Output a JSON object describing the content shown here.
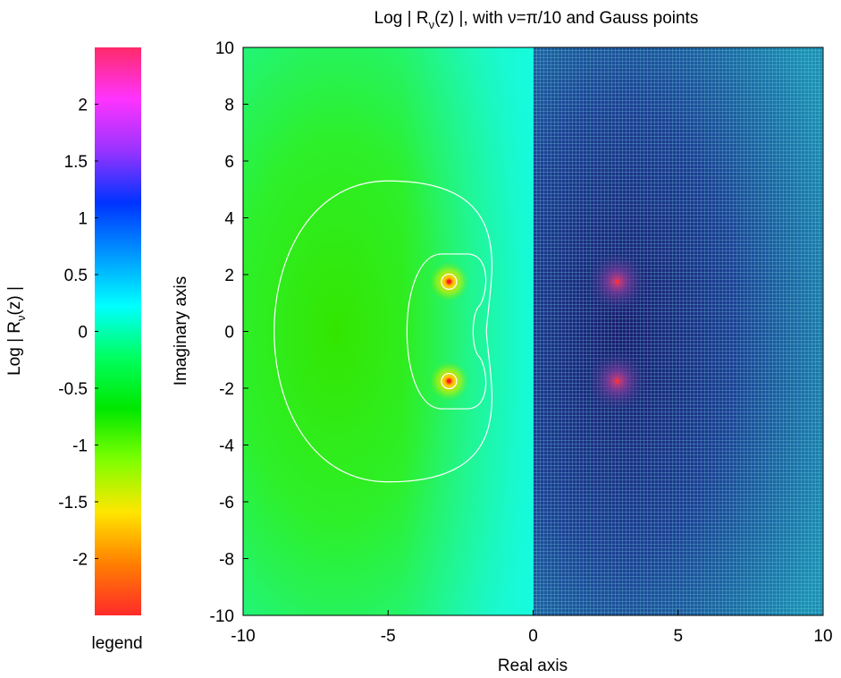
{
  "chart_data": {
    "type": "heatmap",
    "title": "Log | Rν(z) |, with ν=π/10 and Gauss points",
    "title_parts": {
      "lead": "Log | R",
      "subscript": "ν",
      "trail": "(z) |, with ν=π/10 and Gauss points"
    },
    "xlabel": "Real axis",
    "ylabel": "Imaginary axis",
    "xlim": [
      -10,
      10
    ],
    "ylim": [
      -10,
      10
    ],
    "xticks": [
      -10,
      -5,
      0,
      5,
      10
    ],
    "yticks": [
      -10,
      -8,
      -6,
      -4,
      -2,
      0,
      2,
      4,
      6,
      8,
      10
    ],
    "grid": "right half (Re z > 0)",
    "poles": [
      {
        "x": -2.9,
        "y": 1.75
      },
      {
        "x": -2.9,
        "y": -1.75
      }
    ],
    "mirrored_points": [
      {
        "x": 2.9,
        "y": 1.75
      },
      {
        "x": 2.9,
        "y": -1.75
      }
    ],
    "contour_levels_approx": [
      -1.0,
      -0.7,
      -0.3
    ],
    "colorbar": {
      "label": "Log | Rν(z) |",
      "label_parts": {
        "lead": "Log | R",
        "subscript": "ν",
        "trail": "(z) |"
      },
      "min": -2.5,
      "max": 2.5,
      "ticks": [
        -2,
        -1.5,
        -1,
        -0.5,
        0,
        0.5,
        1,
        1.5,
        2
      ],
      "tick_labels": [
        "-2",
        "-1.5",
        "-1",
        "-0.5",
        "0",
        "0.5",
        "1",
        "1.5",
        "2"
      ],
      "footer": "legend",
      "colors": [
        "#ff2a2a",
        "#ff7f00",
        "#ffe600",
        "#7fff00",
        "#00e800",
        "#00ff60",
        "#00ffff",
        "#0096ff",
        "#0033ff",
        "#9933ff",
        "#ff33ff",
        "#ff2a6a"
      ]
    }
  }
}
